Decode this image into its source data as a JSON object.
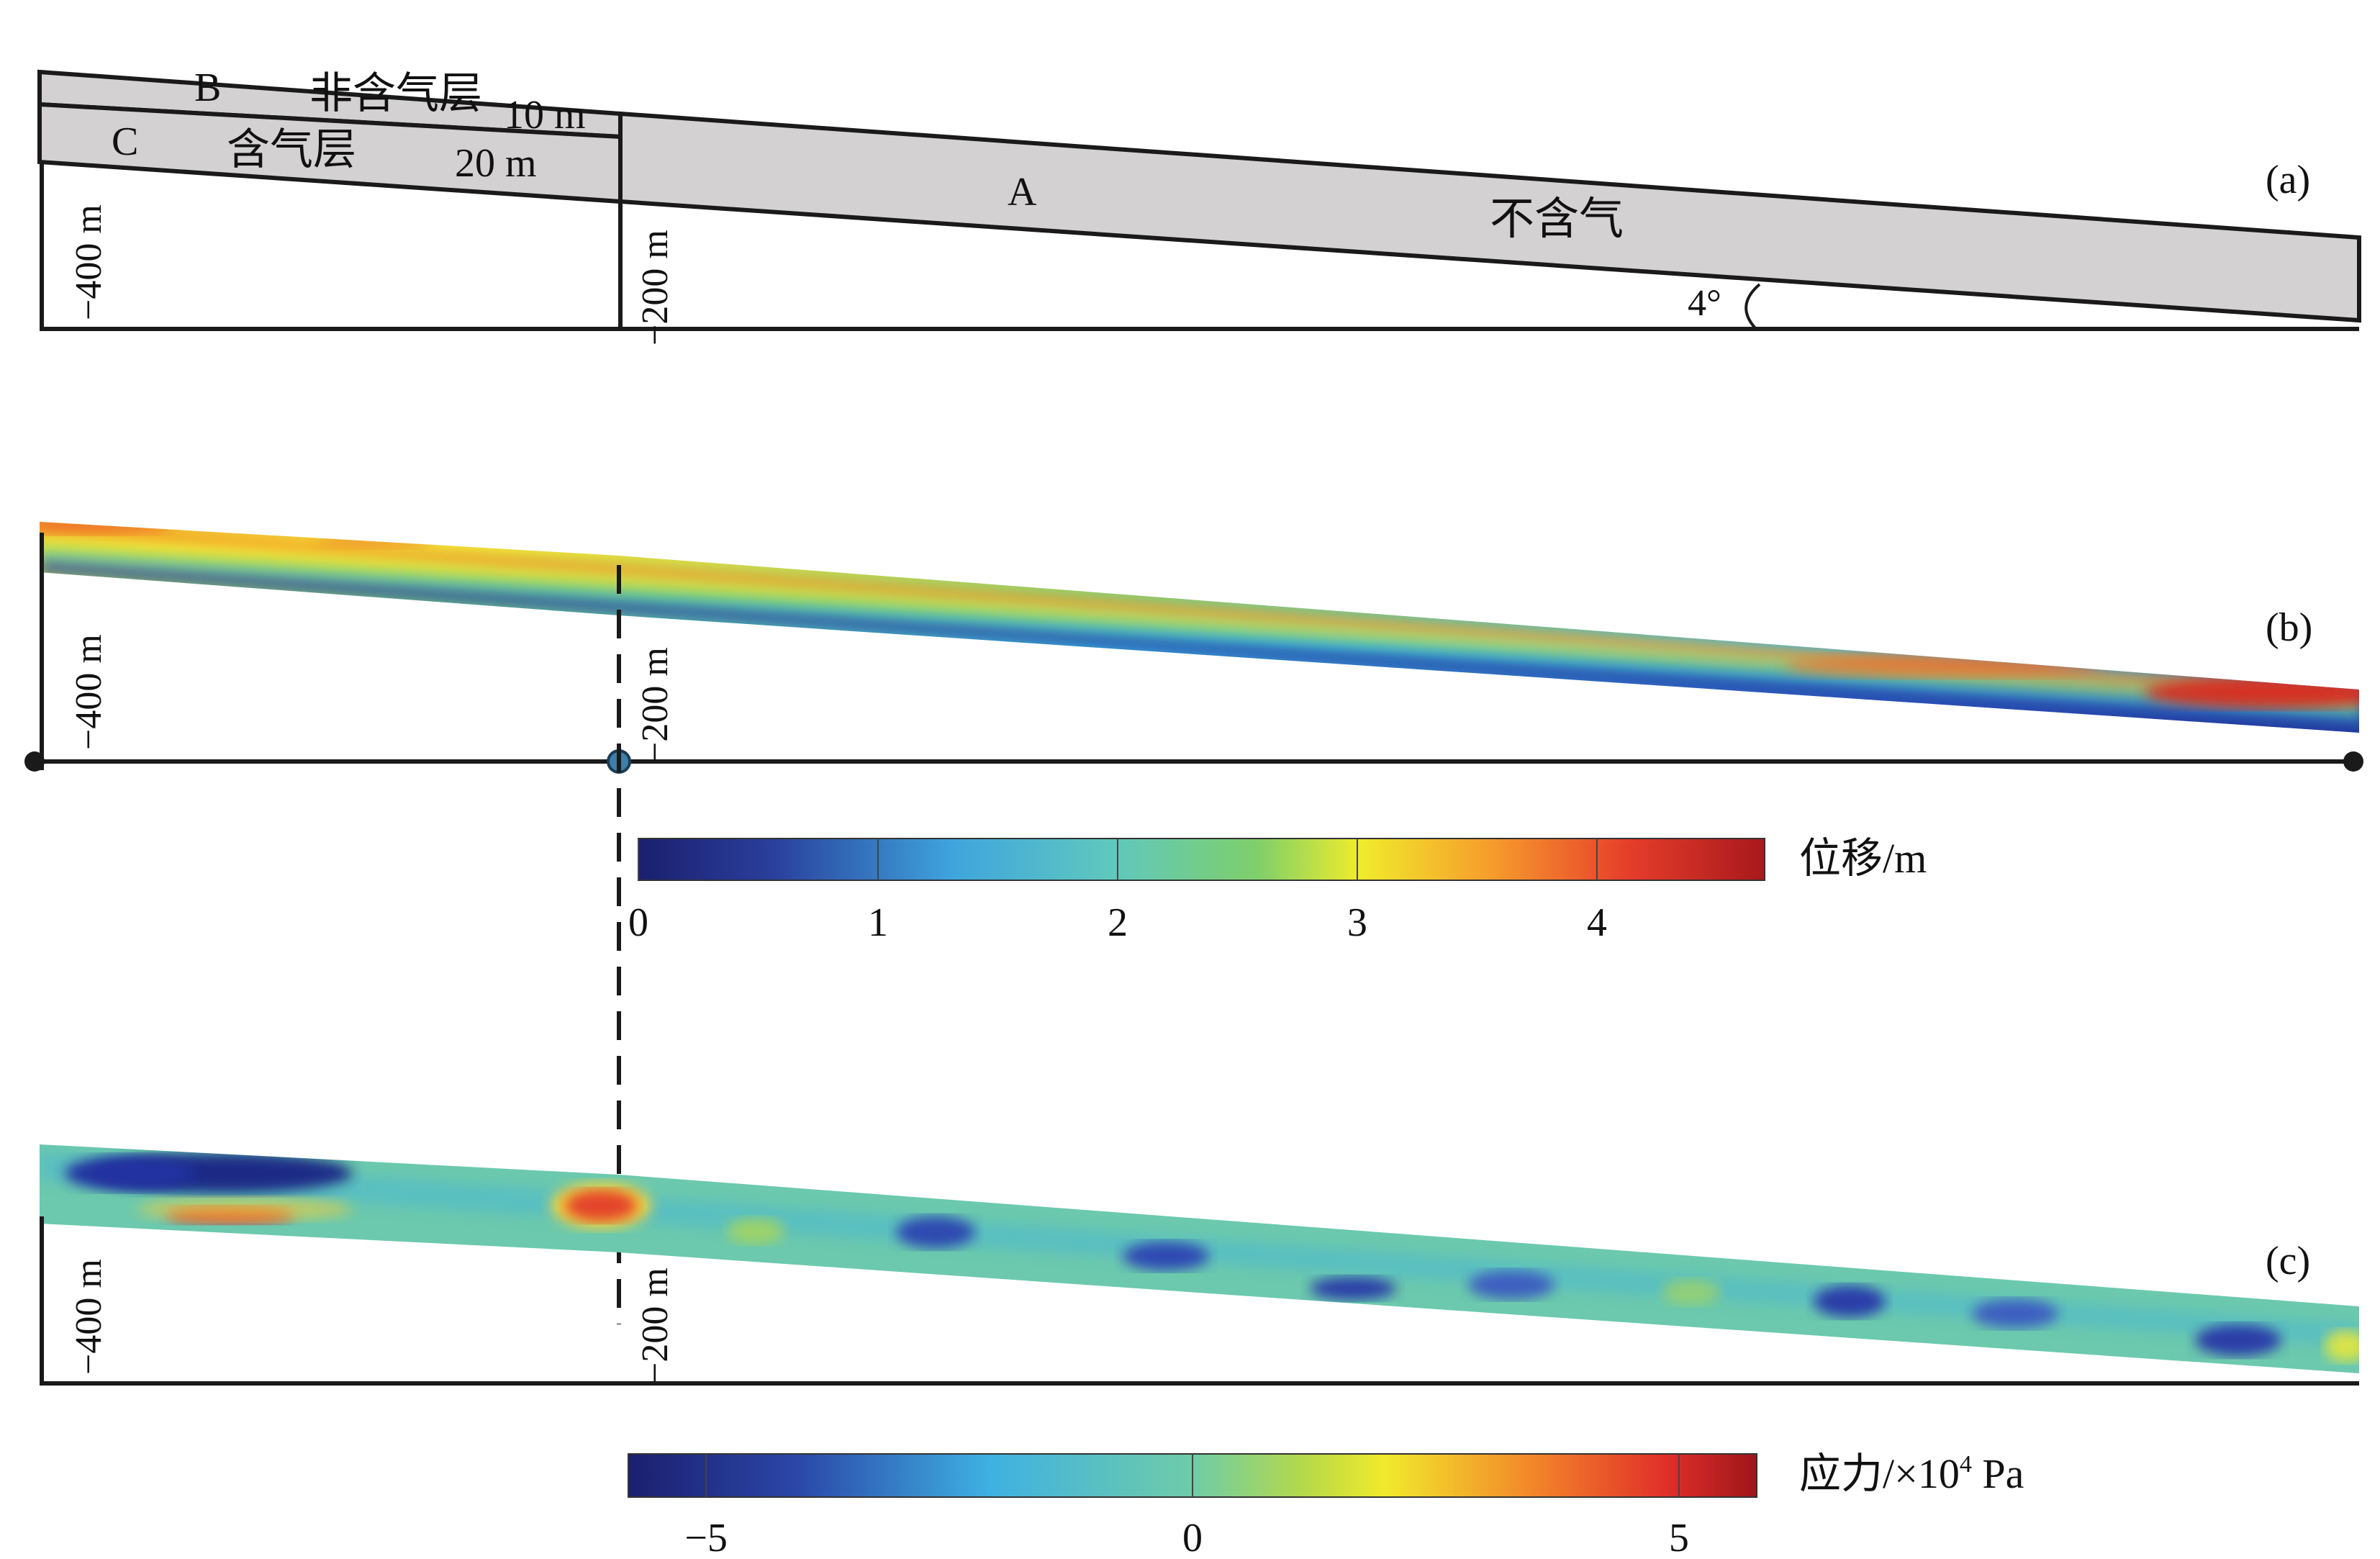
{
  "panel_a": {
    "tag": "(a)",
    "layer_b": {
      "letter": "B",
      "name": "非含气层",
      "thickness": "10 m"
    },
    "layer_c": {
      "letter": "C",
      "name": "含气层",
      "thickness": "20 m"
    },
    "layer_a": {
      "letter": "A",
      "name": "不含气"
    },
    "slope_angle": "4°",
    "length_left": "400 m",
    "length_right": "200 m"
  },
  "panel_b": {
    "tag": "(b)",
    "length_left": "400 m",
    "length_right": "200 m",
    "colorbar": {
      "title": "位移/m",
      "ticks": [
        "0",
        "1",
        "2",
        "3",
        "4"
      ],
      "tick_values": [
        0,
        1,
        2,
        3,
        4
      ],
      "range": [
        0,
        4.7
      ]
    }
  },
  "panel_c": {
    "tag": "(c)",
    "length_left": "400 m",
    "length_right": "200 m",
    "colorbar": {
      "title": "应力/×10",
      "title_exp": "4",
      "title_unit": " Pa",
      "ticks": [
        "−5",
        "0",
        "5"
      ],
      "tick_values": [
        -5,
        0,
        5
      ],
      "range": [
        -5.8,
        5.8
      ]
    }
  },
  "colors": {
    "layer_fill": "#d4d1d2",
    "outline": "#1a1a1a",
    "jet": [
      "#1e2a7a",
      "#2f5fbf",
      "#3fb3e3",
      "#5fc9b8",
      "#8fd05a",
      "#f2ee2e",
      "#f79a2a",
      "#e33a2a",
      "#b01a1a"
    ]
  }
}
